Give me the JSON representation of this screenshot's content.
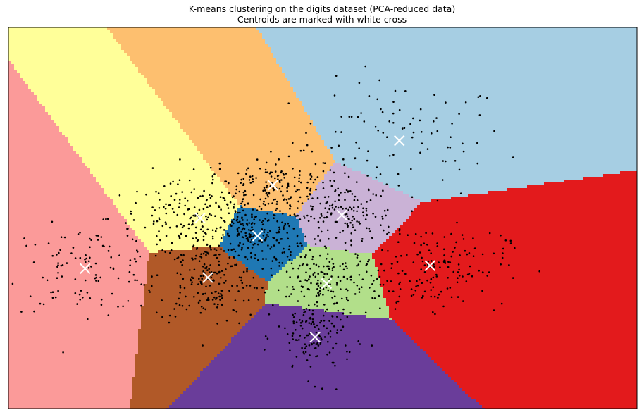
{
  "chart_data": {
    "type": "scatter",
    "title": "K-means clustering on the digits dataset (PCA-reduced data)",
    "subtitle": "Centroids are marked with white cross",
    "xlabel": "",
    "ylabel": "",
    "xlim": [
      -40,
      42
    ],
    "ylim": [
      -31,
      33
    ],
    "ticks_visible": false,
    "grid": false,
    "legend": "none",
    "region_colors": [
      "#a6cee3",
      "#fdbf6f",
      "#ffff99",
      "#fb9a99",
      "#b15928",
      "#1f78b4",
      "#cab2d6",
      "#b2df8a",
      "#6a3d9a",
      "#e31a1c"
    ],
    "point_color": "#000000",
    "centroid_color": "#ffffff",
    "centroids": [
      {
        "x": 11,
        "y": 14
      },
      {
        "x": -5.5,
        "y": 6.5
      },
      {
        "x": -15,
        "y": 1
      },
      {
        "x": -30,
        "y": -7.5
      },
      {
        "x": -14,
        "y": -9
      },
      {
        "x": -7.5,
        "y": -2
      },
      {
        "x": 3.5,
        "y": 1.5
      },
      {
        "x": 1.5,
        "y": -10
      },
      {
        "x": 0,
        "y": -19
      },
      {
        "x": 15,
        "y": -7
      }
    ],
    "cluster_spreads": [
      {
        "sx": 7,
        "sy": 5,
        "n": 100
      },
      {
        "sx": 4.5,
        "sy": 2.5,
        "n": 170
      },
      {
        "sx": 6,
        "sy": 3,
        "n": 190
      },
      {
        "sx": 5,
        "sy": 3.5,
        "n": 110
      },
      {
        "sx": 3.5,
        "sy": 4,
        "n": 200
      },
      {
        "sx": 3,
        "sy": 2.5,
        "n": 150
      },
      {
        "sx": 3.5,
        "sy": 2.5,
        "n": 140
      },
      {
        "sx": 3.5,
        "sy": 3,
        "n": 160
      },
      {
        "sx": 2.5,
        "sy": 3.5,
        "n": 130
      },
      {
        "sx": 5,
        "sy": 3.5,
        "n": 170
      }
    ]
  }
}
